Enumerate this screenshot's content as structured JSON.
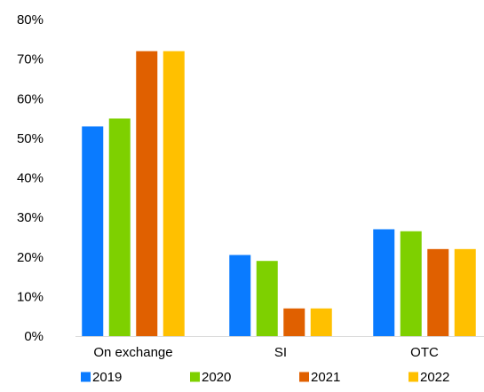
{
  "chart_data": {
    "type": "bar",
    "title": "",
    "xlabel": "",
    "ylabel": "",
    "categories": [
      "On exchange",
      "SI",
      "OTC"
    ],
    "series": [
      {
        "name": "2019",
        "color": "#0A7BFF",
        "values": [
          53,
          20.5,
          27
        ]
      },
      {
        "name": "2020",
        "color": "#7ED000",
        "values": [
          55,
          19,
          26.5
        ]
      },
      {
        "name": "2021",
        "color": "#E06000",
        "values": [
          72,
          7,
          22
        ]
      },
      {
        "name": "2022",
        "color": "#FFC000",
        "values": [
          72,
          7,
          22
        ]
      }
    ],
    "ylim": [
      0,
      80
    ],
    "yticks": [
      0,
      10,
      20,
      30,
      40,
      50,
      60,
      70,
      80
    ],
    "ytick_labels": [
      "0%",
      "10%",
      "20%",
      "30%",
      "40%",
      "50%",
      "60%",
      "70%",
      "80%"
    ],
    "grid": false,
    "legend_position": "bottom"
  }
}
